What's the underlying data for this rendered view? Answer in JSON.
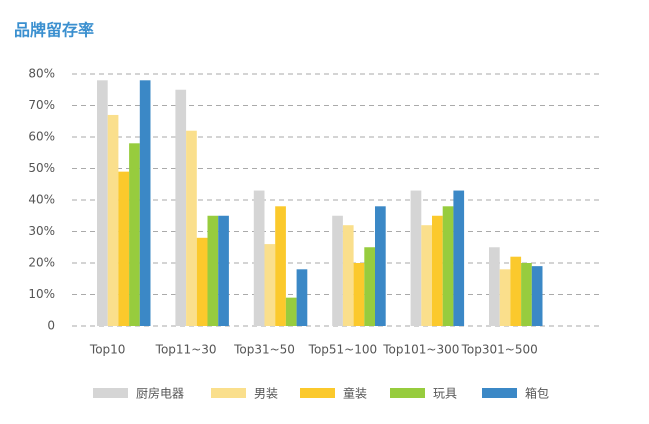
{
  "chart_data": {
    "type": "bar",
    "title": "品牌留存率",
    "categories": [
      "Top10",
      "Top11~30",
      "Top31~50",
      "Top51~100",
      "Top101~300",
      "Top301~500"
    ],
    "series": [
      {
        "name": "厨房电器",
        "color": "#d5d5d5",
        "values": [
          78,
          75,
          43,
          35,
          43,
          25
        ]
      },
      {
        "name": "男装",
        "color": "#fadf8c",
        "values": [
          67,
          62,
          26,
          32,
          32,
          18
        ]
      },
      {
        "name": "童装",
        "color": "#fbc92c",
        "values": [
          49,
          28,
          38,
          20,
          35,
          22
        ]
      },
      {
        "name": "玩具",
        "color": "#97cc3e",
        "values": [
          58,
          35,
          9,
          25,
          38,
          20
        ]
      },
      {
        "name": "箱包",
        "color": "#3b88c6",
        "values": [
          78,
          35,
          18,
          38,
          43,
          19
        ]
      }
    ],
    "ylim": [
      0,
      80
    ],
    "yticks": [
      0,
      {
        "value": 10,
        "label": "10%"
      },
      {
        "value": 20,
        "label": "20%"
      },
      {
        "value": 30,
        "label": "30%"
      },
      {
        "value": 40,
        "label": "40%"
      },
      {
        "value": 50,
        "label": "50%"
      },
      {
        "value": 60,
        "label": "60%"
      },
      {
        "value": 70,
        "label": "70%"
      },
      {
        "value": 80,
        "label": "80%"
      }
    ],
    "grid": true,
    "legend": "bottom"
  }
}
